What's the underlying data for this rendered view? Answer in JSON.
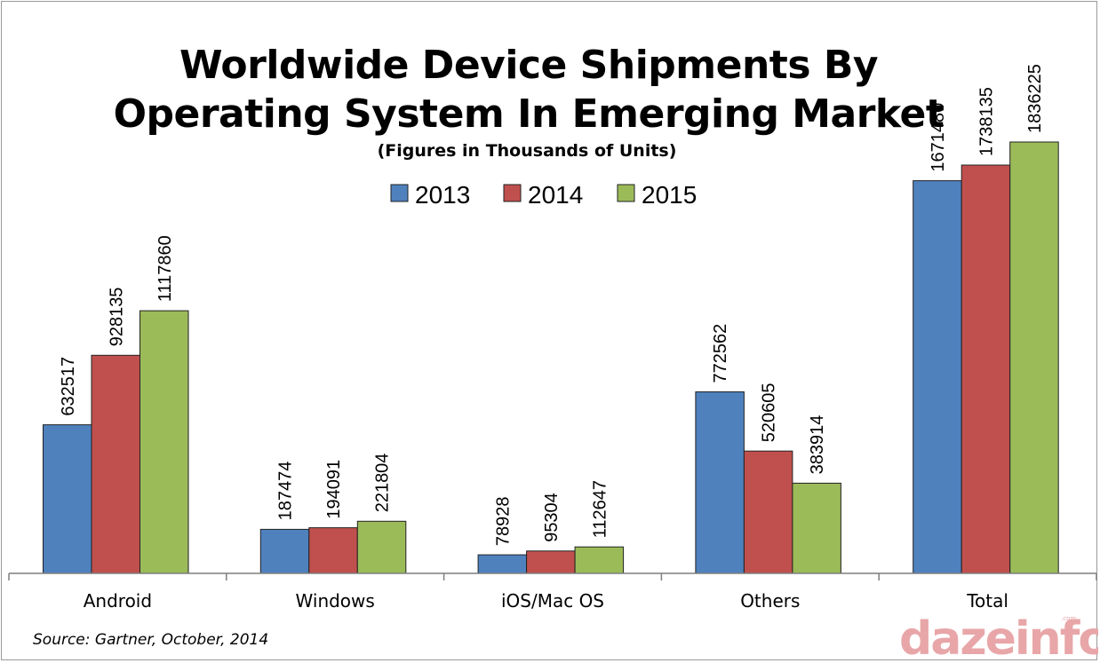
{
  "chart_data": {
    "type": "bar",
    "title_line1": "Worldwide Device Shipments By",
    "title_line2": "Operating System In Emerging Market",
    "subtitle": "(Figures in Thousands of Units)",
    "categories": [
      "Android",
      "Windows",
      "iOS/Mac OS",
      "Others",
      "Total"
    ],
    "series": [
      {
        "name": "2013",
        "color": "#4f81bd",
        "values": [
          632517,
          187474,
          78928,
          772562,
          1671480
        ]
      },
      {
        "name": "2014",
        "color": "#c0504d",
        "values": [
          928135,
          194091,
          95304,
          520605,
          1738135
        ]
      },
      {
        "name": "2015",
        "color": "#9bbb59",
        "values": [
          1117860,
          221804,
          112647,
          383914,
          1836225
        ]
      }
    ],
    "ylim": [
      0,
      1836225
    ],
    "legend_position": "top",
    "grid": false
  },
  "source": "Source: Gartner, October, 2014",
  "logo": {
    "text": "dazeinfo",
    "suffix": ".com"
  }
}
